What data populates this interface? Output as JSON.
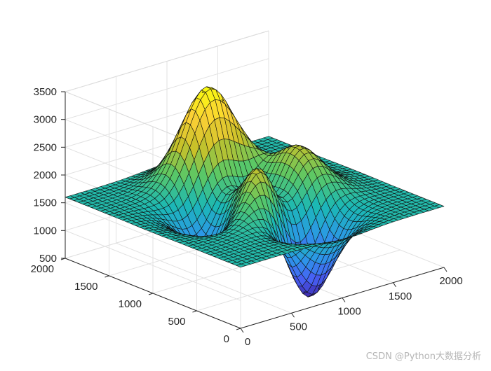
{
  "chart_data": {
    "type": "surface",
    "title": "",
    "xlabel": "",
    "ylabel": "",
    "zlabel": "",
    "xlim": [
      0,
      2000
    ],
    "ylim": [
      0,
      2000
    ],
    "zlim": [
      500,
      3500
    ],
    "x_ticks": [
      0,
      500,
      1000,
      1500,
      2000
    ],
    "y_ticks": [
      0,
      500,
      1000,
      1500,
      2000
    ],
    "z_ticks": [
      500,
      1000,
      1500,
      2000,
      2500,
      3000,
      3500
    ],
    "x_tick_labels": [
      "0",
      "500",
      "1000",
      "1500",
      "2000"
    ],
    "y_tick_labels": [
      "0",
      "500",
      "1000",
      "1500",
      "2000"
    ],
    "z_tick_labels": [
      "500",
      "1000",
      "1500",
      "2000",
      "2500",
      "3000",
      "3500"
    ],
    "grid": true,
    "grid_resolution": 41,
    "colormap": "parula",
    "colormap_stops": [
      "#3e26a8",
      "#4760f5",
      "#2c97e8",
      "#1bb8b5",
      "#5bc865",
      "#c8c129",
      "#fbd036",
      "#f9fb0e"
    ],
    "surface": {
      "function": "peaks",
      "domain": [
        -3,
        3
      ],
      "z_offset": 1600,
      "z_scale": 215
    }
  },
  "watermark": "CSDN @Python大数据分析"
}
